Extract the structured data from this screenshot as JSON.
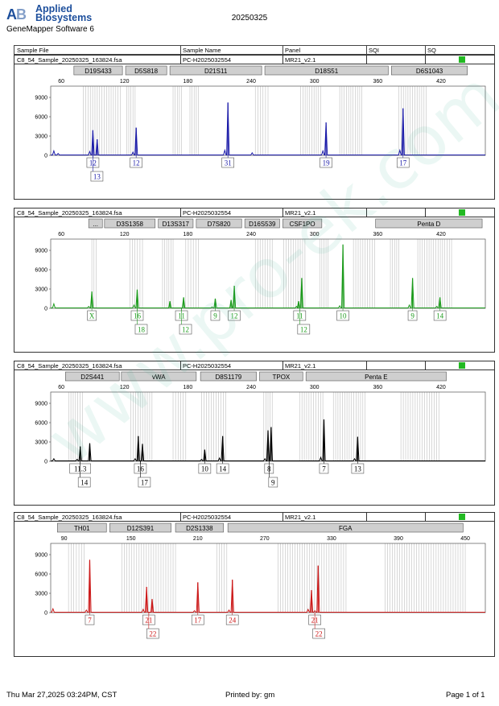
{
  "header": {
    "brand_line1": "Applied",
    "brand_line2": "Biosystems",
    "software": "GeneMapper Software 6",
    "date": "20250325"
  },
  "columns": {
    "sample_file": "Sample File",
    "sample_name": "Sample Name",
    "panel": "Panel",
    "sqi": "SQI",
    "sq": "SQ"
  },
  "chart_data": [
    {
      "type": "line",
      "file": "C8_54_Sample_20250325_163824.fsa",
      "sample": "PC-H2025032554",
      "panel": "MR21_v2.1",
      "color": "#1a1aa8",
      "x_ticks": [
        60,
        120,
        180,
        240,
        300,
        360,
        420
      ],
      "y_ticks": [
        0,
        3000,
        6000,
        9000
      ],
      "xlim": [
        50,
        462
      ],
      "ylim": [
        0,
        10500
      ],
      "loci": [
        {
          "name": "D19S433",
          "start": 72,
          "end": 118
        },
        {
          "name": "D5S818",
          "start": 121,
          "end": 160
        },
        {
          "name": "D21S11",
          "start": 163,
          "end": 250
        },
        {
          "name": "D18S51",
          "start": 253,
          "end": 370
        },
        {
          "name": "D6S1043",
          "start": 373,
          "end": 445
        }
      ],
      "bins": [
        [
          81,
          116
        ],
        [
          122,
          130
        ],
        [
          166,
          174
        ],
        [
          182,
          190
        ],
        [
          244,
          256
        ],
        [
          287,
          306
        ],
        [
          324,
          345
        ],
        [
          380,
          406
        ]
      ],
      "peaks": [
        [
          90,
          3900
        ],
        [
          94,
          2500
        ],
        [
          131,
          4300
        ],
        [
          218,
          8200
        ],
        [
          311,
          5100
        ],
        [
          384,
          7300
        ]
      ],
      "noise": [
        [
          53,
          700
        ],
        [
          57,
          300
        ],
        [
          87,
          600
        ],
        [
          128,
          500
        ],
        [
          215,
          800
        ],
        [
          241,
          400
        ],
        [
          308,
          700
        ],
        [
          381,
          800
        ]
      ],
      "alleles": [
        {
          "x": 90,
          "labels": [
            "12",
            "13"
          ]
        },
        {
          "x": 131,
          "labels": [
            "12"
          ]
        },
        {
          "x": 218,
          "labels": [
            "31"
          ]
        },
        {
          "x": 311,
          "labels": [
            "19"
          ]
        },
        {
          "x": 384,
          "labels": [
            "17"
          ]
        }
      ]
    },
    {
      "type": "line",
      "file": "C8_54_Sample_20250325_163824.fsa",
      "sample": "PC-H2025032554",
      "panel": "MR21_v2.1",
      "color": "#1d9b1d",
      "x_ticks": [
        60,
        120,
        180,
        240,
        300,
        360,
        420
      ],
      "y_ticks": [
        0,
        3000,
        6000,
        9000
      ],
      "xlim": [
        50,
        462
      ],
      "ylim": [
        0,
        10500
      ],
      "loci": [
        {
          "name": "...",
          "start": 86,
          "end": 99
        },
        {
          "name": "D3S1358",
          "start": 101,
          "end": 149
        },
        {
          "name": "D13S317",
          "start": 152,
          "end": 185
        },
        {
          "name": "D7S820",
          "start": 188,
          "end": 231
        },
        {
          "name": "D16S539",
          "start": 234,
          "end": 267
        },
        {
          "name": "CSF1PO",
          "start": 270,
          "end": 307
        },
        {
          "name": "Penta D",
          "start": 358,
          "end": 459
        }
      ],
      "bins": [
        [
          89,
          93
        ],
        [
          125,
          137
        ],
        [
          156,
          166
        ],
        [
          178,
          190
        ],
        [
          244,
          260
        ],
        [
          271,
          291
        ],
        [
          305,
          313
        ],
        [
          337,
          357
        ],
        [
          372,
          380
        ],
        [
          398,
          430
        ]
      ],
      "peaks": [
        [
          89,
          2600
        ],
        [
          132,
          2900
        ],
        [
          163,
          1100
        ],
        [
          176,
          1700
        ],
        [
          206,
          1500
        ],
        [
          221,
          1300
        ],
        [
          224,
          3500
        ],
        [
          285,
          1100
        ],
        [
          288,
          4700
        ],
        [
          327,
          9900
        ],
        [
          393,
          4700
        ],
        [
          419,
          1700
        ]
      ],
      "noise": [
        [
          53,
          700
        ],
        [
          86,
          300
        ],
        [
          129,
          500
        ],
        [
          203,
          200
        ],
        [
          283,
          300
        ],
        [
          324,
          400
        ],
        [
          390,
          500
        ],
        [
          416,
          300
        ]
      ],
      "alleles": [
        {
          "x": 89,
          "labels": [
            "X"
          ]
        },
        {
          "x": 132,
          "labels": [
            "16",
            "18"
          ]
        },
        {
          "x": 174,
          "labels": [
            "11",
            "12"
          ]
        },
        {
          "x": 206,
          "labels": [
            "9"
          ]
        },
        {
          "x": 224,
          "labels": [
            "12"
          ]
        },
        {
          "x": 286,
          "labels": [
            "11",
            "12"
          ]
        },
        {
          "x": 327,
          "labels": [
            "10"
          ]
        },
        {
          "x": 393,
          "labels": [
            "9"
          ]
        },
        {
          "x": 419,
          "labels": [
            "14"
          ]
        }
      ]
    },
    {
      "type": "line",
      "file": "C8_54_Sample_20250325_163824.fsa",
      "sample": "PC-H2025032554",
      "panel": "MR21_v2.1",
      "color": "#000000",
      "x_ticks": [
        60,
        120,
        180,
        240,
        300,
        360,
        420
      ],
      "y_ticks": [
        0,
        3000,
        6000,
        9000
      ],
      "xlim": [
        50,
        462
      ],
      "ylim": [
        0,
        10500
      ],
      "loci": [
        {
          "name": "D2S441",
          "start": 64,
          "end": 115
        },
        {
          "name": "vWA",
          "start": 117,
          "end": 188
        },
        {
          "name": "D8S1179",
          "start": 192,
          "end": 245
        },
        {
          "name": "TPOX",
          "start": 248,
          "end": 289
        },
        {
          "name": "Penta E",
          "start": 292,
          "end": 425
        }
      ],
      "bins": [
        [
          67,
          80
        ],
        [
          126,
          146
        ],
        [
          166,
          178
        ],
        [
          193,
          216
        ],
        [
          252,
          260
        ],
        [
          286,
          308
        ],
        [
          318,
          348
        ],
        [
          382,
          418
        ]
      ],
      "peaks": [
        [
          78,
          2300
        ],
        [
          87,
          2800
        ],
        [
          133,
          3900
        ],
        [
          137,
          2700
        ],
        [
          196,
          1800
        ],
        [
          213,
          3900
        ],
        [
          256,
          4800
        ],
        [
          259,
          5300
        ],
        [
          309,
          6500
        ],
        [
          341,
          3800
        ]
      ],
      "noise": [
        [
          53,
          400
        ],
        [
          75,
          300
        ],
        [
          130,
          400
        ],
        [
          193,
          300
        ],
        [
          210,
          500
        ],
        [
          253,
          400
        ],
        [
          306,
          600
        ],
        [
          338,
          400
        ]
      ],
      "alleles": [
        {
          "x": 78,
          "labels": [
            "11.3",
            "14"
          ]
        },
        {
          "x": 135,
          "labels": [
            "16",
            "17"
          ]
        },
        {
          "x": 196,
          "labels": [
            "10"
          ]
        },
        {
          "x": 213,
          "labels": [
            "14"
          ]
        },
        {
          "x": 257,
          "labels": [
            "8",
            "9"
          ]
        },
        {
          "x": 309,
          "labels": [
            "7"
          ]
        },
        {
          "x": 341,
          "labels": [
            "13"
          ]
        }
      ]
    },
    {
      "type": "line",
      "file": "C8_54_Sample_20250325_163824.fsa",
      "sample": "PC-H2025032554",
      "panel": "MR21_v2.1",
      "color": "#cc1a1a",
      "x_ticks": [
        90,
        150,
        210,
        270,
        330,
        390,
        450
      ],
      "y_ticks": [
        0,
        3000,
        6000,
        9000
      ],
      "xlim": [
        78,
        468
      ],
      "ylim": [
        0,
        10500
      ],
      "loci": [
        {
          "name": "TH01",
          "start": 84,
          "end": 128
        },
        {
          "name": "D12S391",
          "start": 131,
          "end": 186
        },
        {
          "name": "D2S1338",
          "start": 190,
          "end": 233
        },
        {
          "name": "FGA",
          "start": 237,
          "end": 448
        }
      ],
      "bins": [
        [
          94,
          108
        ],
        [
          142,
          190
        ],
        [
          227,
          236
        ],
        [
          282,
          343
        ],
        [
          378,
          450
        ]
      ],
      "peaks": [
        [
          113,
          8200
        ],
        [
          164,
          4000
        ],
        [
          169,
          2100
        ],
        [
          210,
          4700
        ],
        [
          241,
          5100
        ],
        [
          312,
          3500
        ],
        [
          318,
          7300
        ]
      ],
      "noise": [
        [
          80,
          600
        ],
        [
          110,
          400
        ],
        [
          161,
          500
        ],
        [
          207,
          300
        ],
        [
          238,
          400
        ],
        [
          309,
          500
        ],
        [
          315,
          300
        ]
      ],
      "alleles": [
        {
          "x": 113,
          "labels": [
            "7"
          ]
        },
        {
          "x": 166,
          "labels": [
            "21",
            "22"
          ]
        },
        {
          "x": 210,
          "labels": [
            "17"
          ]
        },
        {
          "x": 241,
          "labels": [
            "24"
          ]
        },
        {
          "x": 315,
          "labels": [
            "21",
            "22"
          ]
        }
      ]
    }
  ],
  "footer": {
    "timestamp": "Thu Mar 27,2025 03:24PM, CST",
    "printed_by": "Printed by: gm",
    "page": "Page 1 of 1"
  },
  "watermark": "www.pro-ek.com.cn"
}
